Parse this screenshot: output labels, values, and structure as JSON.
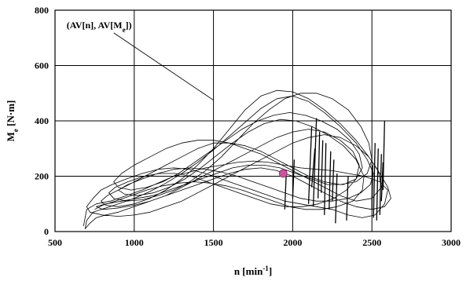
{
  "chart_data": {
    "type": "scatter",
    "xlabel": {
      "main": "n [min",
      "sup": "-1",
      "end": "]"
    },
    "ylabel": {
      "main": "M",
      "sub": "e",
      "end": " [N·m]"
    },
    "xlim": [
      500,
      3000
    ],
    "ylim": [
      0,
      800
    ],
    "xticks": [
      "500",
      "1000",
      "1500",
      "2000",
      "2500",
      "3000"
    ],
    "yticks": [
      "0",
      "200",
      "400",
      "600",
      "800"
    ],
    "grid": true,
    "annotation": {
      "parts": [
        {
          "t": "(AV[n], AV[M",
          "sub": false
        },
        {
          "t": "e",
          "sub": true
        },
        {
          "t": "])",
          "sub": false
        }
      ],
      "text_at": [
        573,
        735
      ],
      "arrow_to": [
        1500,
        475
      ]
    },
    "average_point": {
      "x": 1940,
      "y": 210,
      "color": "#c9559e"
    },
    "trace_color": "#000000",
    "trace": [
      [
        680,
        20
      ],
      [
        700,
        80
      ],
      [
        760,
        100
      ],
      [
        850,
        110
      ],
      [
        950,
        130
      ],
      [
        1050,
        150
      ],
      [
        1150,
        175
      ],
      [
        1250,
        200
      ],
      [
        1350,
        215
      ],
      [
        1450,
        230
      ],
      [
        1550,
        240
      ],
      [
        1650,
        250
      ],
      [
        1750,
        255
      ],
      [
        1850,
        250
      ],
      [
        1950,
        240
      ],
      [
        2050,
        230
      ],
      [
        2150,
        225
      ],
      [
        2250,
        220
      ],
      [
        2350,
        210
      ],
      [
        2450,
        200
      ],
      [
        2550,
        180
      ],
      [
        2600,
        150
      ],
      [
        2580,
        100
      ],
      [
        2520,
        60
      ],
      [
        2440,
        50
      ],
      [
        2350,
        60
      ],
      [
        2250,
        80
      ],
      [
        2150,
        90
      ],
      [
        2050,
        100
      ],
      [
        1950,
        110
      ],
      [
        1850,
        130
      ],
      [
        1750,
        150
      ],
      [
        1650,
        170
      ],
      [
        1550,
        190
      ],
      [
        1450,
        210
      ],
      [
        1350,
        225
      ],
      [
        1250,
        230
      ],
      [
        1150,
        225
      ],
      [
        1050,
        210
      ],
      [
        950,
        190
      ],
      [
        860,
        170
      ],
      [
        790,
        150
      ],
      [
        740,
        120
      ],
      [
        700,
        90
      ],
      [
        720,
        70
      ],
      [
        800,
        60
      ],
      [
        900,
        55
      ],
      [
        1000,
        60
      ],
      [
        1100,
        70
      ],
      [
        1200,
        90
      ],
      [
        1300,
        110
      ],
      [
        1400,
        140
      ],
      [
        1500,
        170
      ],
      [
        1600,
        200
      ],
      [
        1700,
        230
      ],
      [
        1800,
        260
      ],
      [
        1900,
        290
      ],
      [
        2000,
        320
      ],
      [
        2100,
        340
      ],
      [
        2200,
        350
      ],
      [
        2300,
        340
      ],
      [
        2400,
        310
      ],
      [
        2480,
        270
      ],
      [
        2540,
        220
      ],
      [
        2560,
        160
      ],
      [
        2500,
        120
      ],
      [
        2400,
        110
      ],
      [
        2300,
        130
      ],
      [
        2200,
        160
      ],
      [
        2100,
        190
      ],
      [
        2000,
        220
      ],
      [
        1900,
        250
      ],
      [
        1800,
        280
      ],
      [
        1700,
        300
      ],
      [
        1600,
        320
      ],
      [
        1500,
        330
      ],
      [
        1400,
        330
      ],
      [
        1300,
        320
      ],
      [
        1200,
        300
      ],
      [
        1100,
        270
      ],
      [
        1000,
        240
      ],
      [
        920,
        210
      ],
      [
        870,
        180
      ],
      [
        900,
        160
      ],
      [
        980,
        150
      ],
      [
        1080,
        160
      ],
      [
        1180,
        180
      ],
      [
        1280,
        210
      ],
      [
        1380,
        250
      ],
      [
        1480,
        290
      ],
      [
        1580,
        330
      ],
      [
        1680,
        370
      ],
      [
        1780,
        400
      ],
      [
        1880,
        420
      ],
      [
        1980,
        430
      ],
      [
        2080,
        420
      ],
      [
        2180,
        400
      ],
      [
        2280,
        370
      ],
      [
        2360,
        330
      ],
      [
        2420,
        280
      ],
      [
        2440,
        230
      ],
      [
        2400,
        190
      ],
      [
        2320,
        170
      ],
      [
        2220,
        170
      ],
      [
        2120,
        190
      ],
      [
        2020,
        210
      ],
      [
        1920,
        230
      ],
      [
        1820,
        240
      ],
      [
        1720,
        240
      ],
      [
        1620,
        230
      ],
      [
        1520,
        210
      ],
      [
        1420,
        190
      ],
      [
        1320,
        170
      ],
      [
        1220,
        150
      ],
      [
        1120,
        130
      ],
      [
        1020,
        120
      ],
      [
        920,
        110
      ],
      [
        820,
        100
      ],
      [
        760,
        90
      ],
      [
        800,
        80
      ],
      [
        900,
        85
      ],
      [
        1000,
        95
      ],
      [
        1100,
        110
      ],
      [
        1200,
        130
      ],
      [
        1300,
        160
      ],
      [
        1400,
        190
      ],
      [
        1500,
        220
      ],
      [
        1600,
        250
      ],
      [
        1700,
        280
      ],
      [
        1800,
        310
      ],
      [
        1900,
        340
      ],
      [
        2000,
        360
      ],
      [
        2100,
        370
      ],
      [
        2200,
        360
      ],
      [
        2300,
        330
      ],
      [
        2380,
        290
      ],
      [
        2420,
        240
      ],
      [
        2400,
        190
      ],
      [
        2340,
        150
      ],
      [
        2260,
        120
      ],
      [
        2160,
        100
      ],
      [
        2060,
        90
      ],
      [
        1960,
        90
      ],
      [
        1860,
        100
      ],
      [
        1760,
        120
      ],
      [
        1660,
        140
      ],
      [
        1560,
        160
      ],
      [
        1460,
        180
      ],
      [
        1360,
        200
      ],
      [
        1260,
        210
      ],
      [
        1160,
        210
      ],
      [
        1060,
        200
      ],
      [
        960,
        180
      ],
      [
        880,
        160
      ],
      [
        840,
        140
      ],
      [
        870,
        120
      ],
      [
        950,
        110
      ],
      [
        1050,
        115
      ],
      [
        1150,
        130
      ],
      [
        1250,
        150
      ],
      [
        1350,
        180
      ],
      [
        1450,
        220
      ],
      [
        1550,
        270
      ],
      [
        1650,
        330
      ],
      [
        1750,
        390
      ],
      [
        1850,
        440
      ],
      [
        1950,
        480
      ],
      [
        2050,
        500
      ],
      [
        2150,
        500
      ],
      [
        2250,
        480
      ],
      [
        2350,
        440
      ],
      [
        2430,
        380
      ],
      [
        2480,
        320
      ],
      [
        2500,
        260
      ],
      [
        2470,
        210
      ],
      [
        2400,
        180
      ],
      [
        2300,
        170
      ],
      [
        2200,
        180
      ],
      [
        2100,
        200
      ],
      [
        2000,
        230
      ],
      [
        1900,
        260
      ],
      [
        1800,
        290
      ],
      [
        1700,
        310
      ],
      [
        1600,
        320
      ],
      [
        1500,
        320
      ],
      [
        1400,
        300
      ],
      [
        1300,
        270
      ],
      [
        1200,
        240
      ],
      [
        1100,
        210
      ],
      [
        1000,
        180
      ],
      [
        900,
        150
      ],
      [
        830,
        130
      ],
      [
        790,
        110
      ],
      [
        820,
        95
      ],
      [
        900,
        90
      ],
      [
        1000,
        100
      ],
      [
        1100,
        120
      ],
      [
        1200,
        150
      ],
      [
        1300,
        190
      ],
      [
        1400,
        240
      ],
      [
        1500,
        300
      ],
      [
        1600,
        370
      ],
      [
        1700,
        440
      ],
      [
        1800,
        490
      ],
      [
        1900,
        510
      ],
      [
        2000,
        505
      ],
      [
        2100,
        480
      ],
      [
        2200,
        440
      ],
      [
        2300,
        390
      ],
      [
        2400,
        330
      ],
      [
        2480,
        270
      ],
      [
        2550,
        210
      ],
      [
        2600,
        160
      ],
      [
        2620,
        120
      ],
      [
        2580,
        90
      ],
      [
        2500,
        80
      ],
      [
        2400,
        90
      ],
      [
        2300,
        110
      ],
      [
        2200,
        140
      ],
      [
        2100,
        170
      ],
      [
        2000,
        200
      ],
      [
        1900,
        220
      ],
      [
        1800,
        230
      ],
      [
        1700,
        225
      ],
      [
        1600,
        210
      ],
      [
        1500,
        190
      ],
      [
        1400,
        170
      ],
      [
        1300,
        150
      ],
      [
        1200,
        130
      ],
      [
        1100,
        110
      ],
      [
        1000,
        90
      ],
      [
        900,
        70
      ],
      [
        820,
        60
      ],
      [
        760,
        50
      ],
      [
        720,
        30
      ],
      [
        690,
        10
      ],
      [
        700,
        40
      ],
      [
        740,
        70
      ],
      [
        820,
        85
      ],
      [
        900,
        100
      ],
      [
        1000,
        120
      ],
      [
        1100,
        145
      ],
      [
        1200,
        175
      ],
      [
        1300,
        210
      ],
      [
        1400,
        250
      ],
      [
        1500,
        295
      ],
      [
        1600,
        345
      ],
      [
        1700,
        395
      ],
      [
        1800,
        445
      ],
      [
        1900,
        480
      ],
      [
        2000,
        490
      ],
      [
        2100,
        470
      ],
      [
        2200,
        430
      ],
      [
        2300,
        380
      ],
      [
        2400,
        320
      ],
      [
        2470,
        260
      ],
      [
        2510,
        210
      ],
      [
        2490,
        170
      ],
      [
        2430,
        140
      ],
      [
        2350,
        120
      ],
      [
        2250,
        110
      ],
      [
        2150,
        110
      ],
      [
        2050,
        120
      ],
      [
        1950,
        140
      ],
      [
        1850,
        160
      ],
      [
        1750,
        180
      ],
      [
        1650,
        200
      ],
      [
        1550,
        215
      ],
      [
        1450,
        225
      ],
      [
        1350,
        230
      ],
      [
        1250,
        225
      ],
      [
        1150,
        210
      ],
      [
        1050,
        190
      ],
      [
        960,
        170
      ],
      [
        900,
        150
      ],
      [
        940,
        135
      ],
      [
        1020,
        130
      ],
      [
        1120,
        140
      ],
      [
        1220,
        160
      ],
      [
        1320,
        190
      ],
      [
        1420,
        230
      ],
      [
        1520,
        275
      ],
      [
        1620,
        320
      ],
      [
        1720,
        360
      ],
      [
        1820,
        390
      ],
      [
        1920,
        405
      ],
      [
        2020,
        400
      ],
      [
        2120,
        380
      ],
      [
        2220,
        350
      ],
      [
        2320,
        310
      ],
      [
        2400,
        260
      ],
      [
        2450,
        200
      ],
      [
        2440,
        150
      ],
      [
        2380,
        110
      ],
      [
        2280,
        90
      ],
      [
        2180,
        80
      ],
      [
        2080,
        80
      ],
      [
        1980,
        90
      ],
      [
        1880,
        110
      ],
      [
        1780,
        130
      ],
      [
        1680,
        150
      ],
      [
        1580,
        165
      ],
      [
        1480,
        175
      ],
      [
        1380,
        180
      ],
      [
        1280,
        175
      ],
      [
        1180,
        165
      ],
      [
        1080,
        150
      ],
      [
        980,
        130
      ],
      [
        880,
        110
      ],
      [
        800,
        95
      ],
      [
        750,
        80
      ]
    ],
    "spikes": [
      [
        [
          2100,
          100
        ],
        [
          2120,
          380
        ]
      ],
      [
        [
          2130,
          90
        ],
        [
          2150,
          410
        ]
      ],
      [
        [
          2160,
          120
        ],
        [
          2170,
          360
        ]
      ],
      [
        [
          2200,
          60
        ],
        [
          2210,
          320
        ]
      ],
      [
        [
          2230,
          80
        ],
        [
          2240,
          290
        ]
      ],
      [
        [
          2250,
          110
        ],
        [
          2260,
          260
        ]
      ],
      [
        [
          2120,
          160
        ],
        [
          2140,
          300
        ]
      ],
      [
        [
          2180,
          140
        ],
        [
          2190,
          330
        ]
      ],
      [
        [
          2340,
          40
        ],
        [
          2350,
          200
        ]
      ],
      [
        [
          2510,
          50
        ],
        [
          2520,
          320
        ]
      ],
      [
        [
          2530,
          40
        ],
        [
          2540,
          300
        ]
      ],
      [
        [
          2550,
          60
        ],
        [
          2560,
          280
        ]
      ],
      [
        [
          2560,
          110
        ],
        [
          2570,
          250
        ]
      ],
      [
        [
          2570,
          150
        ],
        [
          2580,
          400
        ]
      ],
      [
        [
          2500,
          80
        ],
        [
          2505,
          240
        ]
      ],
      [
        [
          2270,
          30
        ],
        [
          2280,
          210
        ]
      ],
      [
        [
          1950,
          80
        ],
        [
          1960,
          220
        ]
      ],
      [
        [
          2000,
          120
        ],
        [
          2010,
          260
        ]
      ]
    ]
  }
}
